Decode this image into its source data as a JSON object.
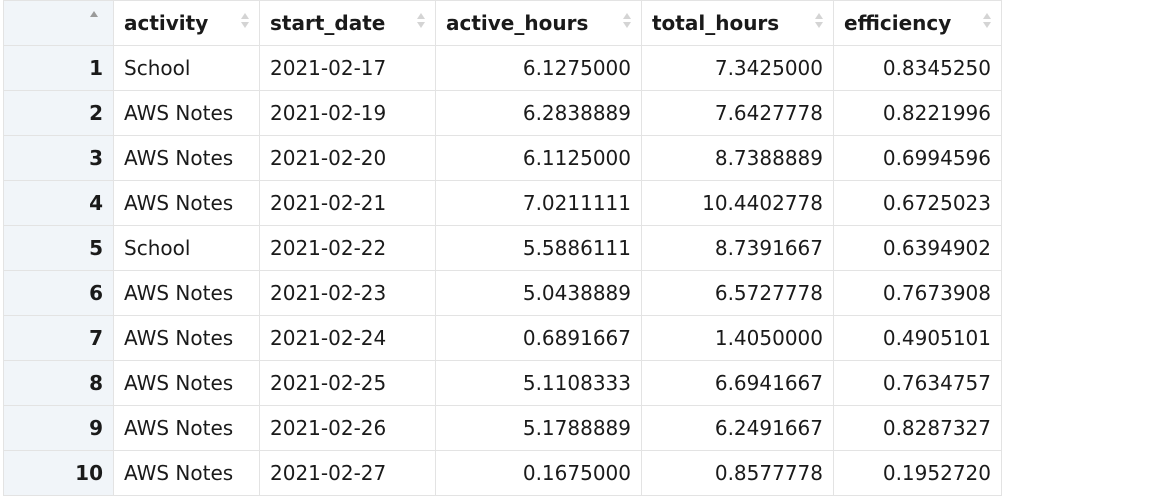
{
  "table": {
    "columns": [
      {
        "key": "row_index",
        "label": "",
        "align": "right"
      },
      {
        "key": "activity",
        "label": "activity",
        "align": "left"
      },
      {
        "key": "start_date",
        "label": "start_date",
        "align": "left"
      },
      {
        "key": "active_hours",
        "label": "active_hours",
        "align": "right"
      },
      {
        "key": "total_hours",
        "label": "total_hours",
        "align": "right"
      },
      {
        "key": "efficiency",
        "label": "efficiency",
        "align": "right"
      }
    ],
    "rows": [
      {
        "row_index": "1",
        "activity": "School",
        "start_date": "2021-02-17",
        "active_hours": "6.1275000",
        "total_hours": "7.3425000",
        "efficiency": "0.8345250"
      },
      {
        "row_index": "2",
        "activity": "AWS Notes",
        "start_date": "2021-02-19",
        "active_hours": "6.2838889",
        "total_hours": "7.6427778",
        "efficiency": "0.8221996"
      },
      {
        "row_index": "3",
        "activity": "AWS Notes",
        "start_date": "2021-02-20",
        "active_hours": "6.1125000",
        "total_hours": "8.7388889",
        "efficiency": "0.6994596"
      },
      {
        "row_index": "4",
        "activity": "AWS Notes",
        "start_date": "2021-02-21",
        "active_hours": "7.0211111",
        "total_hours": "10.4402778",
        "efficiency": "0.6725023"
      },
      {
        "row_index": "5",
        "activity": "School",
        "start_date": "2021-02-22",
        "active_hours": "5.5886111",
        "total_hours": "8.7391667",
        "efficiency": "0.6394902"
      },
      {
        "row_index": "6",
        "activity": "AWS Notes",
        "start_date": "2021-02-23",
        "active_hours": "5.0438889",
        "total_hours": "6.5727778",
        "efficiency": "0.7673908"
      },
      {
        "row_index": "7",
        "activity": "AWS Notes",
        "start_date": "2021-02-24",
        "active_hours": "0.6891667",
        "total_hours": "1.4050000",
        "efficiency": "0.4905101"
      },
      {
        "row_index": "8",
        "activity": "AWS Notes",
        "start_date": "2021-02-25",
        "active_hours": "5.1108333",
        "total_hours": "6.6941667",
        "efficiency": "0.7634757"
      },
      {
        "row_index": "9",
        "activity": "AWS Notes",
        "start_date": "2021-02-26",
        "active_hours": "5.1788889",
        "total_hours": "6.2491667",
        "efficiency": "0.8287327"
      },
      {
        "row_index": "10",
        "activity": "AWS Notes",
        "start_date": "2021-02-27",
        "active_hours": "0.1675000",
        "total_hours": "0.8577778",
        "efficiency": "0.1952720"
      }
    ]
  },
  "sort": {
    "column": "row_index",
    "direction": "ascending"
  },
  "icons": {
    "sort": "sort-arrows-icon"
  },
  "colors": {
    "row_number_background": "#f1f5f9",
    "border": "#e3e3e3",
    "sort_arrow_inactive": "#d4d4d4",
    "sort_arrow_active": "#9a9a9a"
  }
}
